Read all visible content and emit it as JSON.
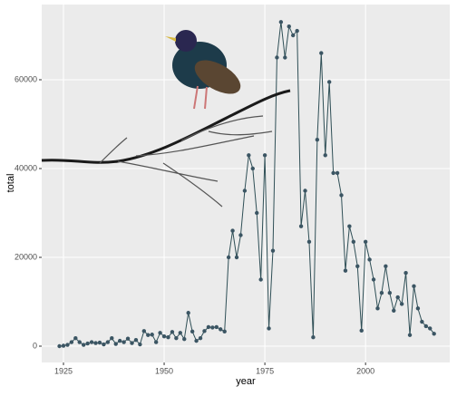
{
  "chart_data": {
    "type": "line",
    "xlabel": "year",
    "ylabel": "total",
    "x": [
      1924,
      1925,
      1926,
      1927,
      1928,
      1929,
      1930,
      1931,
      1932,
      1933,
      1934,
      1935,
      1936,
      1937,
      1938,
      1939,
      1940,
      1941,
      1942,
      1943,
      1944,
      1945,
      1946,
      1947,
      1948,
      1949,
      1950,
      1951,
      1952,
      1953,
      1954,
      1955,
      1956,
      1957,
      1958,
      1959,
      1960,
      1961,
      1962,
      1963,
      1964,
      1965,
      1966,
      1967,
      1968,
      1969,
      1970,
      1971,
      1972,
      1973,
      1974,
      1975,
      1976,
      1977,
      1978,
      1979,
      1980,
      1981,
      1982,
      1983,
      1984,
      1985,
      1986,
      1987,
      1988,
      1989,
      1990,
      1991,
      1992,
      1993,
      1994,
      1995,
      1996,
      1997,
      1998,
      1999,
      2000,
      2001,
      2002,
      2003,
      2004,
      2005,
      2006,
      2007,
      2008,
      2009,
      2010,
      2011,
      2012,
      2013,
      2014,
      2015,
      2016,
      2017
    ],
    "series": [
      {
        "name": "total",
        "color": "#2f4f56",
        "point_color": "#3b5563",
        "values": [
          0,
          100,
          300,
          900,
          1800,
          900,
          300,
          600,
          900,
          700,
          800,
          400,
          900,
          1800,
          500,
          1200,
          900,
          1700,
          700,
          1400,
          400,
          3400,
          2500,
          2600,
          900,
          3000,
          2200,
          2000,
          3200,
          1800,
          3000,
          1600,
          7500,
          3300,
          1200,
          1800,
          3400,
          4300,
          4200,
          4300,
          3800,
          3300,
          20000,
          26000,
          20000,
          25000,
          35000,
          43000,
          40000,
          30000,
          15000,
          43000,
          4000,
          21500,
          65000,
          73000,
          65000,
          72000,
          70000,
          71000,
          27000,
          35000,
          23500,
          2000,
          46500,
          66000,
          43000,
          59500,
          39000,
          39000,
          34000,
          17000,
          27000,
          23500,
          18000,
          3500,
          23500,
          19500,
          15000,
          8500,
          12000,
          18000,
          12000,
          8000,
          11000,
          9500,
          16500,
          2500,
          13500,
          8500,
          5500,
          4500,
          4000,
          2800
        ]
      }
    ],
    "xlim": [
      1919.6,
      2020.9
    ],
    "xticks": [
      1925,
      1950,
      1975,
      2000
    ],
    "ylim": [
      -3673,
      76939
    ],
    "yticks": [
      0,
      20000,
      40000,
      60000
    ],
    "grid": true
  }
}
